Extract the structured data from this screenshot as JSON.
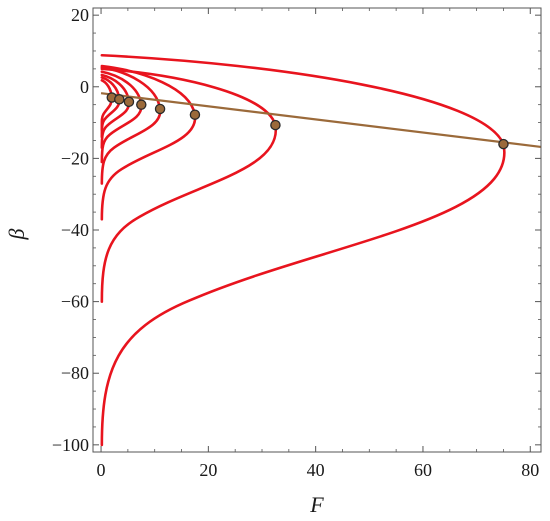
{
  "chart_data": {
    "type": "line",
    "title": "",
    "xlabel": "F",
    "ylabel": "β",
    "xlim": [
      -1.5,
      82
    ],
    "ylim": [
      -102,
      22
    ],
    "x_ticks": [
      0,
      20,
      40,
      60,
      80
    ],
    "y_ticks": [
      20,
      0,
      -20,
      -40,
      -60,
      -80,
      -100
    ],
    "x_tick_labels": [
      "0",
      "20",
      "40",
      "60",
      "80"
    ],
    "y_tick_labels": [
      "20",
      "0",
      "−20",
      "−40",
      "−60",
      "−80",
      "−100"
    ],
    "grid": false,
    "colors": {
      "curves": "#e8141e",
      "trend": "#9b6a3a",
      "marker_fill": "#9b6a3a",
      "marker_edge": "#2a2a2a",
      "frame": "#555555"
    },
    "curves": [
      {
        "start": 1.8,
        "tip_x": 2.0,
        "tip_y": -3.0,
        "bottom": -12.0
      },
      {
        "start": 2.6,
        "tip_x": 3.4,
        "tip_y": -3.5,
        "bottom": -14.0
      },
      {
        "start": 3.3,
        "tip_x": 5.2,
        "tip_y": -4.2,
        "bottom": -17.0
      },
      {
        "start": 4.2,
        "tip_x": 7.5,
        "tip_y": -5.0,
        "bottom": -21.0
      },
      {
        "start": 5.4,
        "tip_x": 11.0,
        "tip_y": -6.2,
        "bottom": -27.0
      },
      {
        "start": 5.8,
        "tip_x": 17.5,
        "tip_y": -7.8,
        "bottom": -37.0
      },
      {
        "start": 5.0,
        "tip_x": 32.5,
        "tip_y": -10.7,
        "bottom": -60.0
      },
      {
        "start": 8.8,
        "tip_x": 75.0,
        "tip_y": -16.0,
        "bottom": -100.0
      }
    ],
    "trend_line": {
      "x": [
        0,
        82
      ],
      "y": [
        -1.8,
        -16.8
      ]
    },
    "markers": [
      {
        "x": 2.0,
        "y": -3.0
      },
      {
        "x": 3.4,
        "y": -3.5
      },
      {
        "x": 5.2,
        "y": -4.2
      },
      {
        "x": 7.5,
        "y": -5.0
      },
      {
        "x": 11.0,
        "y": -6.2
      },
      {
        "x": 17.5,
        "y": -7.8
      },
      {
        "x": 32.5,
        "y": -10.7
      },
      {
        "x": 75.0,
        "y": -16.0
      }
    ]
  }
}
